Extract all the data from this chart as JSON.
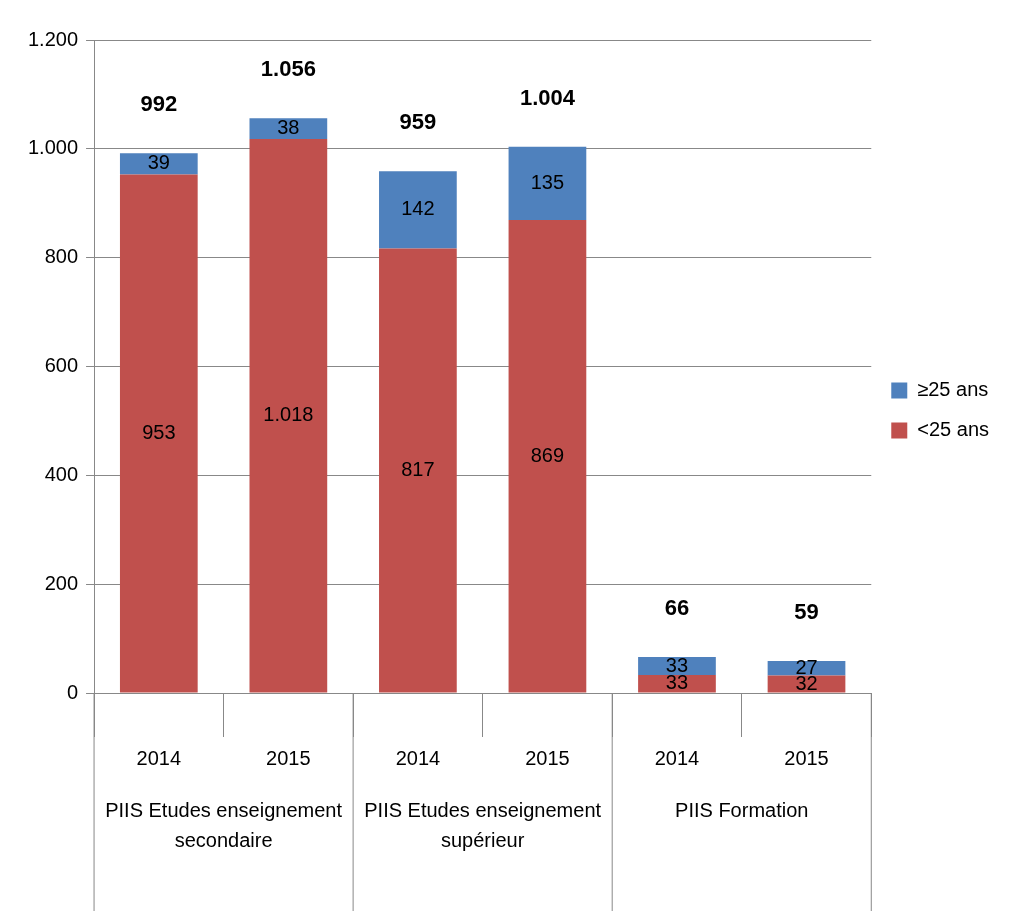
{
  "chart_data": {
    "type": "bar",
    "stacked": true,
    "categories": [
      "2014",
      "2015",
      "2014",
      "2015",
      "2014",
      "2015"
    ],
    "series": [
      {
        "name": "<25 ans",
        "color": "#c0504d",
        "values": [
          953,
          1018,
          817,
          869,
          33,
          32
        ],
        "value_labels": [
          "953",
          "1.018",
          "817",
          "869",
          "33",
          "32"
        ]
      },
      {
        "name": "≥25 ans",
        "color": "#4f81bd",
        "values": [
          39,
          38,
          142,
          135,
          33,
          27
        ],
        "value_labels": [
          "39",
          "38",
          "142",
          "135",
          "33",
          "27"
        ]
      }
    ],
    "totals": [
      "992",
      "1.056",
      "959",
      "1.004",
      "66",
      "59"
    ],
    "annotations": [
      "PIIS Etudes enseignement secondaire",
      "PIIS Etudes enseignement supérieur",
      "PIIS Formation"
    ],
    "ylim": [
      0,
      1200
    ],
    "yticks": [
      0,
      200,
      400,
      600,
      800,
      {
        "value": 1000,
        "label": "1.000"
      },
      {
        "value": 1200,
        "label": "1.200"
      }
    ],
    "grid": "y",
    "legend": "right"
  }
}
